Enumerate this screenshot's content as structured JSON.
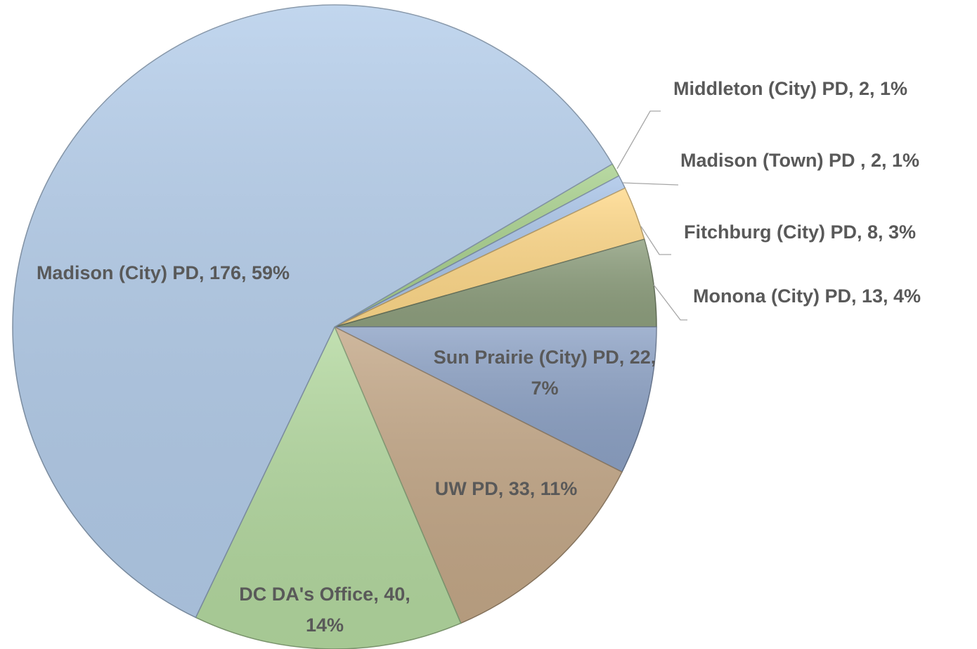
{
  "chart_data": {
    "type": "pie",
    "values": [
      2,
      2,
      8,
      13,
      22,
      33,
      40,
      176
    ],
    "value_labels": [
      "Middleton (City) PD, 2, 1%",
      "Madison (Town) PD , 2, 1%",
      "Fitchburg (City) PD, 8, 3%",
      "Monona (City) PD, 13, 4%",
      "Sun Prairie (City) PD, 22, 7%",
      "UW PD, 33, 11%",
      "DC DA's Office, 40, 14%",
      "Madison (City) PD, 176, 59%"
    ],
    "colors": [
      "#a9d18e",
      "#a9c4e8",
      "#ffd98a",
      "#8fa07f",
      "#8ea3c6",
      "#c4a888",
      "#b4d9a0",
      "#b4cdea"
    ]
  }
}
